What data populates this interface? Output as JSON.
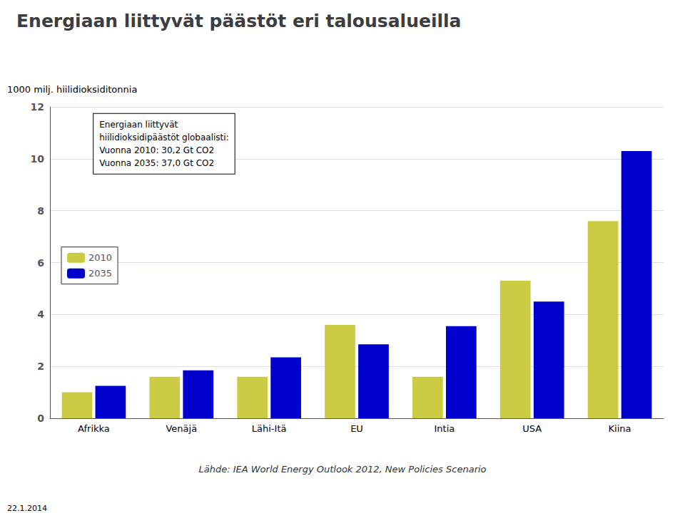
{
  "chart_data": {
    "type": "bar",
    "title": "Energiaan liittyvät päästöt eri talousalueilla",
    "ylabel": "1000 milj. hiilidioksiditonnia",
    "categories": [
      "Afrikka",
      "Venäjä",
      "Lähi-Itä",
      "EU",
      "Intia",
      "USA",
      "Kiina"
    ],
    "series": [
      {
        "name": "2010",
        "color": "#CCCC44",
        "values": [
          1.0,
          1.6,
          1.6,
          3.6,
          1.6,
          5.3,
          7.6
        ]
      },
      {
        "name": "2035",
        "color": "#0000CC",
        "values": [
          1.25,
          1.85,
          2.35,
          2.85,
          3.55,
          4.5,
          10.3
        ]
      }
    ],
    "ylim": [
      0,
      12
    ],
    "yticks": [
      0,
      2,
      4,
      6,
      8,
      10,
      12
    ],
    "grid": true,
    "legend": "left",
    "annotations": [
      "Energiaan liittyvät\nhiilidioksidipäästöt globaalisti:\nVuonna 2010: 30,2 Gt CO2\nVuonna 2035: 37,0 Gt CO2",
      "Lähde: IEA World Energy Outlook 2012, New Policies Scenario",
      "22.1.2014"
    ]
  }
}
